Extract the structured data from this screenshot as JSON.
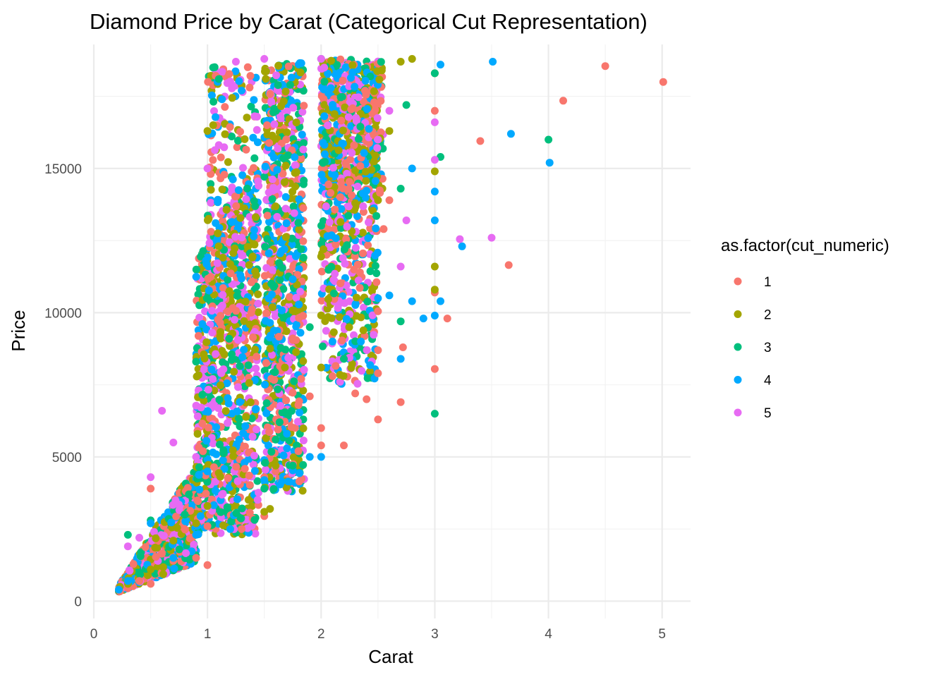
{
  "chart_data": {
    "type": "scatter",
    "title": "Diamond Price by Carat (Categorical Cut Representation)",
    "xlabel": "Carat",
    "ylabel": "Price",
    "xlim": [
      0,
      5.25
    ],
    "ylim": [
      -600,
      19300
    ],
    "x_ticks": [
      0,
      1,
      2,
      3,
      4,
      5
    ],
    "y_ticks": [
      0,
      5000,
      10000,
      15000
    ],
    "grid": true,
    "legend": {
      "title": "as.factor(cut_numeric)",
      "position": "right"
    },
    "series": [
      {
        "name": "1",
        "color": "#F8766D",
        "points": [
          [
            0.23,
            340
          ],
          [
            0.3,
            450
          ],
          [
            0.4,
            700
          ],
          [
            0.5,
            600
          ],
          [
            0.5,
            3900
          ],
          [
            0.7,
            1400
          ],
          [
            0.9,
            1500
          ],
          [
            1.0,
            1250
          ],
          [
            1.0,
            2600
          ],
          [
            1.3,
            2500
          ],
          [
            1.5,
            2950
          ],
          [
            1.5,
            4300
          ],
          [
            1.6,
            4500
          ],
          [
            1.8,
            5200
          ],
          [
            1.8,
            6800
          ],
          [
            1.9,
            7100
          ],
          [
            2.0,
            5400
          ],
          [
            2.0,
            6000
          ],
          [
            2.1,
            7800
          ],
          [
            2.2,
            5400
          ],
          [
            2.3,
            7200
          ],
          [
            2.4,
            7000
          ],
          [
            2.5,
            6300
          ],
          [
            2.5,
            7900
          ],
          [
            2.5,
            8700
          ],
          [
            2.5,
            10050
          ],
          [
            2.55,
            12900
          ],
          [
            2.6,
            13900
          ],
          [
            2.7,
            6900
          ],
          [
            2.72,
            8800
          ],
          [
            3.0,
            8050
          ],
          [
            3.0,
            10700
          ],
          [
            3.0,
            17000
          ],
          [
            3.11,
            9800
          ],
          [
            3.4,
            15950
          ],
          [
            3.65,
            11650
          ],
          [
            4.13,
            17350
          ],
          [
            4.5,
            18550
          ],
          [
            5.01,
            18000
          ]
        ]
      },
      {
        "name": "2",
        "color": "#A3A500",
        "points": [
          [
            0.23,
            500
          ],
          [
            0.3,
            600
          ],
          [
            0.5,
            1100
          ],
          [
            0.7,
            2100
          ],
          [
            0.9,
            2700
          ],
          [
            1.0,
            3300
          ],
          [
            1.0,
            16300
          ],
          [
            1.05,
            16500
          ],
          [
            1.5,
            3100
          ],
          [
            1.55,
            3200
          ],
          [
            1.6,
            4700
          ],
          [
            2.0,
            8100
          ],
          [
            2.3,
            13800
          ],
          [
            2.5,
            13900
          ],
          [
            2.6,
            16300
          ],
          [
            2.7,
            18700
          ],
          [
            2.8,
            18800
          ],
          [
            3.0,
            10800
          ],
          [
            3.0,
            11600
          ],
          [
            3.0,
            14900
          ],
          [
            3.0,
            18300
          ]
        ]
      },
      {
        "name": "3",
        "color": "#00BF7D",
        "points": [
          [
            0.3,
            2300
          ],
          [
            0.5,
            2800
          ],
          [
            0.8,
            3000
          ],
          [
            0.9,
            8300
          ],
          [
            1.05,
            18500
          ],
          [
            1.1,
            18100
          ],
          [
            1.5,
            3900
          ],
          [
            1.6,
            5600
          ],
          [
            1.75,
            4700
          ],
          [
            1.9,
            9500
          ],
          [
            2.0,
            18800
          ],
          [
            2.2,
            8400
          ],
          [
            2.7,
            9700
          ],
          [
            2.7,
            14300
          ],
          [
            2.75,
            17200
          ],
          [
            3.0,
            6500
          ],
          [
            3.0,
            18300
          ],
          [
            3.05,
            15400
          ],
          [
            4.0,
            16000
          ]
        ]
      },
      {
        "name": "4",
        "color": "#00A9FF",
        "points": [
          [
            0.22,
            400
          ],
          [
            0.3,
            700
          ],
          [
            0.5,
            2700
          ],
          [
            0.7,
            1500
          ],
          [
            0.9,
            2300
          ],
          [
            1.0,
            4500
          ],
          [
            1.2,
            2500
          ],
          [
            1.3,
            17700
          ],
          [
            1.5,
            4200
          ],
          [
            1.7,
            5300
          ],
          [
            1.9,
            5000
          ],
          [
            2.0,
            5000
          ],
          [
            2.1,
            9000
          ],
          [
            2.35,
            9000
          ],
          [
            2.5,
            10500
          ],
          [
            2.6,
            10600
          ],
          [
            2.7,
            8400
          ],
          [
            2.8,
            10400
          ],
          [
            2.8,
            15000
          ],
          [
            2.9,
            9800
          ],
          [
            3.0,
            9900
          ],
          [
            3.0,
            13200
          ],
          [
            3.0,
            14200
          ],
          [
            3.05,
            10400
          ],
          [
            3.05,
            18600
          ],
          [
            3.24,
            12300
          ],
          [
            3.51,
            18700
          ],
          [
            3.67,
            16200
          ],
          [
            4.01,
            15200
          ]
        ]
      },
      {
        "name": "5",
        "color": "#E76BF3",
        "points": [
          [
            0.3,
            1900
          ],
          [
            0.4,
            2200
          ],
          [
            0.5,
            4300
          ],
          [
            0.6,
            6600
          ],
          [
            0.7,
            5500
          ],
          [
            0.9,
            5000
          ],
          [
            1.0,
            15000
          ],
          [
            1.25,
            18700
          ],
          [
            1.5,
            18800
          ],
          [
            2.0,
            18800
          ],
          [
            2.5,
            16000
          ],
          [
            2.6,
            17000
          ],
          [
            2.7,
            11600
          ],
          [
            2.75,
            13200
          ],
          [
            3.0,
            15300
          ],
          [
            3.0,
            16600
          ],
          [
            3.22,
            12550
          ],
          [
            3.5,
            12600
          ]
        ]
      }
    ]
  }
}
